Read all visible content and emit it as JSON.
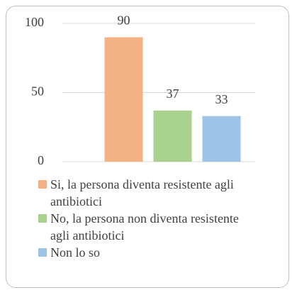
{
  "chart_data": {
    "type": "bar",
    "categories": [
      "Si, la persona diventa resistente agli antibiotici",
      "No, la persona non diventa resistente agli antibiotici",
      "Non lo so"
    ],
    "values": [
      90,
      37,
      33
    ],
    "colors": [
      "#f4b183",
      "#a9d18e",
      "#9dc3e6"
    ],
    "ylim": [
      0,
      100
    ],
    "yticks": [
      0,
      50,
      100
    ],
    "grid": true,
    "legend": "bottom"
  }
}
